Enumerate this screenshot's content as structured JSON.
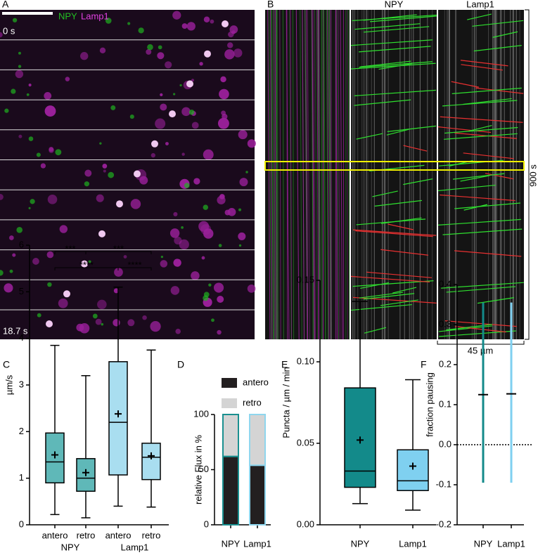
{
  "image_panels": {
    "A": {
      "label": "A",
      "channels": [
        "NPY",
        "Lamp1"
      ],
      "time_start": "0 s",
      "time_end": "18.7 s"
    },
    "B": {
      "label": "B",
      "columns": [
        "NPY",
        "Lamp1"
      ],
      "time_scale": "900 s",
      "length_scale": "45 µm"
    }
  },
  "chart_data": [
    {
      "type": "box",
      "label": "C",
      "ylabel": "µm/s",
      "categories": [
        "antero",
        "retro",
        "antero",
        "retro"
      ],
      "groups": [
        {
          "name": "NPY",
          "categories": [
            0,
            1
          ]
        },
        {
          "name": "Lamp1",
          "categories": [
            2,
            3
          ]
        }
      ],
      "min": [
        0.22,
        0.15,
        0.4,
        0.38
      ],
      "q1": [
        0.9,
        0.72,
        1.07,
        0.97
      ],
      "median": [
        1.35,
        1.0,
        2.2,
        1.45
      ],
      "q3": [
        1.97,
        1.42,
        3.5,
        1.75
      ],
      "max": [
        3.85,
        3.2,
        5.1,
        3.75
      ],
      "mean": [
        1.5,
        1.12,
        2.38,
        1.48
      ],
      "fill_colors": [
        "#5fb8b8",
        "#5fb8b8",
        "#a9def0",
        "#a9def0"
      ],
      "ylim": [
        0,
        6
      ],
      "yticks": [
        0,
        1,
        2,
        3,
        4,
        5,
        6
      ],
      "significance": [
        [
          {
            "pair": [
              0,
              1
            ],
            "label": "***"
          },
          {
            "pair": [
              1,
              3
            ],
            "label": "***"
          }
        ],
        [
          {
            "pair": [
              0,
              2
            ],
            "label": "****"
          },
          {
            "pair": [
              2,
              3
            ],
            "label": "****"
          }
        ]
      ]
    },
    {
      "type": "stacked_bar",
      "label": "D",
      "ylabel": "relative Flux in %",
      "categories": [
        "NPY",
        "Lamp1"
      ],
      "edge_colors": [
        "#1a9090",
        "#8fd6ee"
      ],
      "series": [
        {
          "name": "antero",
          "color": "#231f20",
          "values": [
            62,
            54
          ]
        },
        {
          "name": "retro",
          "color": "#d4d4d4",
          "values": [
            38,
            46
          ]
        }
      ],
      "ylim": [
        0,
        100
      ],
      "yticks": [
        0,
        50,
        100
      ]
    },
    {
      "type": "box",
      "label": "E",
      "ylabel": "Puncta / µm / min",
      "categories": [
        "NPY",
        "Lamp1"
      ],
      "min": [
        0.013,
        0.009
      ],
      "q1": [
        0.023,
        0.021
      ],
      "median": [
        0.033,
        0.027
      ],
      "q3": [
        0.084,
        0.046
      ],
      "max": [
        0.137,
        0.089
      ],
      "mean": [
        0.052,
        0.036
      ],
      "fill_colors": [
        "#138a8a",
        "#7fd0f0"
      ],
      "ylim": [
        0,
        0.15
      ],
      "yticks": [
        {
          "value": 0,
          "label": "0.00"
        },
        0.05,
        {
          "value": 0.1,
          "label": "0.10"
        },
        0.15
      ]
    },
    {
      "type": "errorbar",
      "label": "F",
      "ylabel": "fraction pausing",
      "categories": [
        "NPY",
        "Lamp1"
      ],
      "values": [
        0.125,
        0.127
      ],
      "lower": [
        -0.095,
        -0.095
      ],
      "upper": [
        0.355,
        0.355
      ],
      "colors": [
        "#138a8a",
        "#7fd0f0"
      ],
      "ylim": [
        -0.2,
        0.4
      ],
      "yticks": [
        -0.2,
        -0.1,
        {
          "value": 0,
          "label": "0.0"
        },
        0.1,
        0.2,
        0.3,
        0.4
      ]
    }
  ]
}
